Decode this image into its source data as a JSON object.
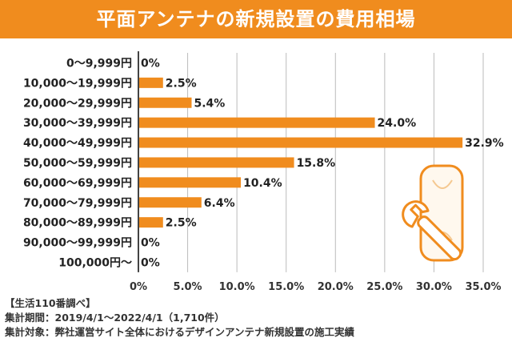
{
  "header": {
    "title": "平面アンテナの新規設置の費用相場"
  },
  "chart_data": {
    "type": "bar",
    "orientation": "horizontal",
    "title": "平面アンテナの新規設置の費用相場",
    "categories": [
      "0～9,999円",
      "10,000～19,999円",
      "20,000～29,999円",
      "30,000～39,999円",
      "40,000～49,999円",
      "50,000～59,999円",
      "60,000～69,999円",
      "70,000～79,999円",
      "80,000～89,999円",
      "90,000～99,999円",
      "100,000円～"
    ],
    "values": [
      0,
      2.5,
      5.4,
      24.0,
      32.9,
      15.8,
      10.4,
      6.4,
      2.5,
      0,
      0
    ],
    "value_labels": [
      "0%",
      "2.5%",
      "5.4%",
      "24.0%",
      "32.9%",
      "15.8%",
      "10.4%",
      "6.4%",
      "2.5%",
      "0%",
      "0%"
    ],
    "x_ticks": [
      "0%",
      "5.0%",
      "10.0%",
      "15.0%",
      "20.0%",
      "25.0%",
      "30.0%",
      "35.0%"
    ],
    "xlim": [
      0,
      35
    ],
    "grid": true,
    "bar_color": "#f08c1e"
  },
  "footer": {
    "source": "【生活110番調べ】",
    "period": "集計期間：2019/4/1～2022/4/1（1,710件）",
    "scope": "集計対象：弊社運営サイト全体におけるデザインアンテナ新規設置の施工実績"
  },
  "colors": {
    "accent": "#f08c1e",
    "axis": "#444444",
    "grid": "#bbbbbb"
  },
  "illustration": {
    "icon": "antenna-with-wrench-icon"
  }
}
